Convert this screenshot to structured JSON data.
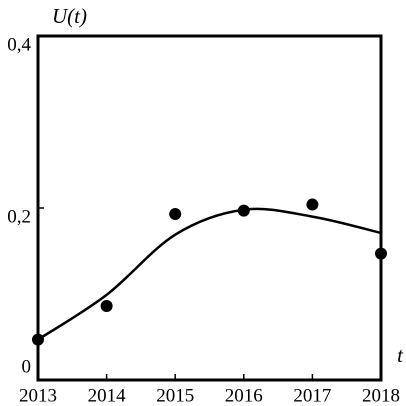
{
  "chart_data": {
    "type": "scatter",
    "y_label": "U(t)",
    "x_label": "t",
    "x": [
      2013,
      2014,
      2015,
      2016,
      2017,
      2018
    ],
    "series": [
      {
        "style": "points",
        "color": "#000000",
        "values": [
          0.047,
          0.086,
          0.193,
          0.197,
          0.204,
          0.147
        ]
      },
      {
        "style": "line",
        "color": "#000000",
        "values": [
          0.047,
          0.099,
          0.169,
          0.198,
          0.19,
          0.171
        ]
      }
    ],
    "xlim": [
      2013,
      2018
    ],
    "xticks": [
      2013,
      2014,
      2015,
      2016,
      2017,
      2018
    ],
    "ylim": [
      0,
      0.4
    ],
    "yticks": [
      0,
      {
        "value": 0.2,
        "label": "0,2"
      },
      {
        "value": 0.4,
        "label": "0,4"
      }
    ],
    "grid": false
  }
}
